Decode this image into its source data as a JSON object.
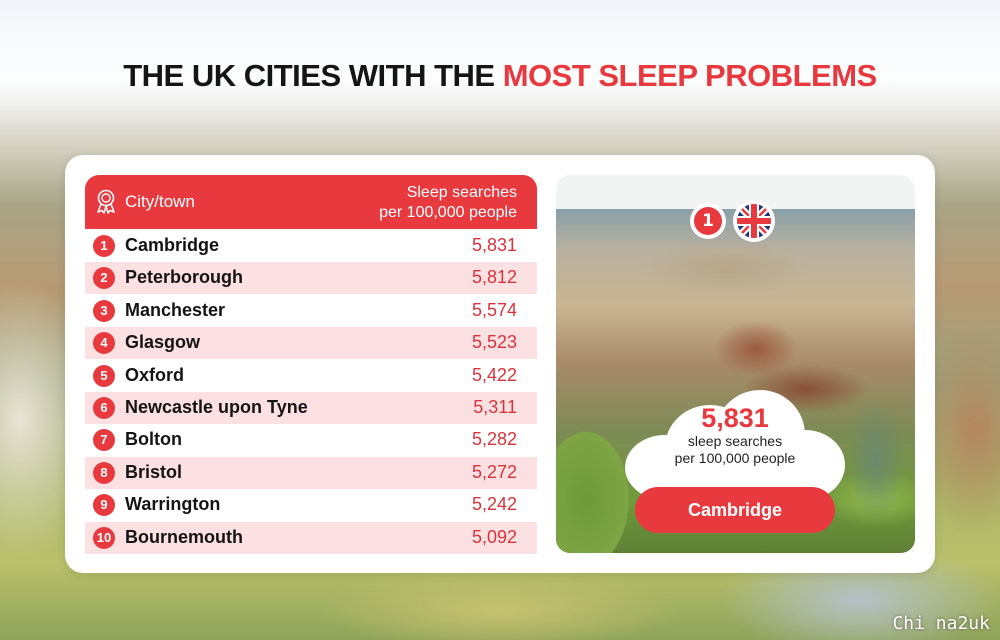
{
  "title": {
    "part1": "THE ",
    "part2": "UK CITIES",
    "part3": " WITH THE ",
    "part4": "MOST SLEEP PROBLEMS"
  },
  "colors": {
    "accent": "#e8393f",
    "row_alt": "#fde1e2"
  },
  "chart_data": {
    "type": "table",
    "columns": [
      "City/town",
      "Sleep searches per 100,000 people"
    ],
    "header": {
      "city": "City/town",
      "metric_line1": "Sleep searches",
      "metric_line2": "per 100,000 people",
      "icon": "award-rosette-icon"
    },
    "rows": [
      {
        "rank": "1",
        "city": "Cambridge",
        "value": "5,831"
      },
      {
        "rank": "2",
        "city": "Peterborough",
        "value": "5,812"
      },
      {
        "rank": "3",
        "city": "Manchester",
        "value": "5,574"
      },
      {
        "rank": "4",
        "city": "Glasgow",
        "value": "5,523"
      },
      {
        "rank": "5",
        "city": "Oxford",
        "value": "5,422"
      },
      {
        "rank": "6",
        "city": "Newcastle upon Tyne",
        "value": "5,311"
      },
      {
        "rank": "7",
        "city": "Bolton",
        "value": "5,282"
      },
      {
        "rank": "8",
        "city": "Bristol",
        "value": "5,272"
      },
      {
        "rank": "9",
        "city": "Warrington",
        "value": "5,242"
      },
      {
        "rank": "10",
        "city": "Bournemouth",
        "value": "5,092"
      }
    ]
  },
  "feature": {
    "rank": "1",
    "flag": "uk-flag-icon",
    "value": "5,831",
    "line1": "sleep searches",
    "line2": "per 100,000 people",
    "city": "Cambridge"
  },
  "watermark": "Chi na2uk"
}
